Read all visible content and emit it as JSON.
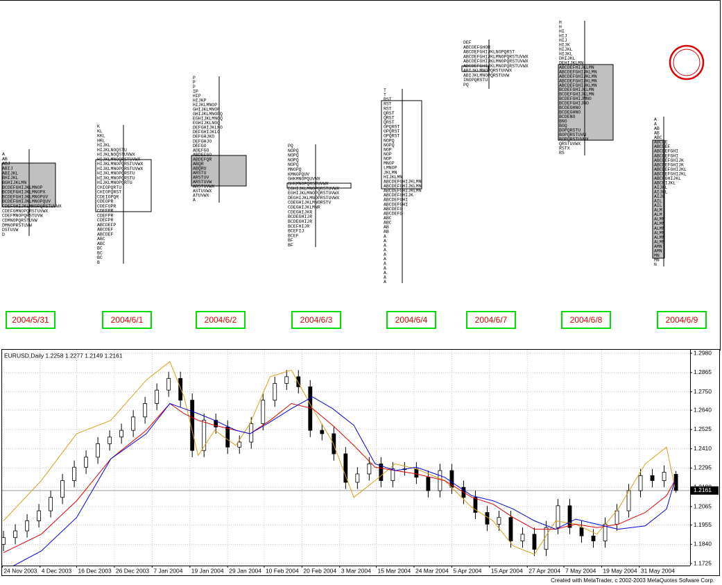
{
  "profiles": [
    {
      "date": "2004/5/31",
      "rows": [
        "A",
        "AB",
        "ABJ",
        "ABIJ",
        "ABIJKL",
        "BHIJKL",
        "BGHIJKLMN",
        "BCDEFGHIJKLMNOP",
        "BCDEFGHIJKLMNOPX",
        "BCDEFGHIJKLMNOPUV",
        "BCDEFGHIJKLMNOPQUV",
        "CDEFGHIJKLMNOPQRSTUVWX",
        "CDEFGMNOPQRSTUVWX",
        "CDEFMNOPQRSTUVW",
        "CDMNOPQRSTUVW",
        "DMNOPRSTUVW",
        "DSTUVW",
        "D"
      ]
    },
    {
      "date": "2004/6/1",
      "rows": [
        "K",
        "KL",
        "KKL",
        "HKL",
        "HIJKL",
        "HIJKLNOQSTU",
        "HIJKLNOQSTUVWX",
        "HIJKLMNOQRSTUVWX",
        "HIJKLMNOPQRSTUVWX",
        "HIJKLMNOPQRSTUVWX",
        "HIJKLMNOPQRSTU",
        "HIJKLMNOPQRSTU",
        "HIJKLMNOPQRTU",
        "CHIOPQRTU",
        "CHIOPQRST",
        "CDEIOPQR",
        "CDEOPR",
        "CDEFOPR",
        "CDEFPR",
        "CDEFPR",
        "CDEFPR",
        "ABCDEFP",
        "ABCDEF",
        "ABCDEF",
        "ABC",
        "ABC",
        "BC",
        "BC",
        "BC",
        "B"
      ]
    },
    {
      "date": "2004/6/2",
      "rows": [
        "P",
        "P",
        "P",
        "IP",
        "HIP",
        "HIJKP",
        "HIJKLMNOP",
        "GHIJKLMNOP",
        "GHIJKLMNOPQ",
        "EGHIJKLMNOQ",
        "EGHIJKLNOQ",
        "DEFGHIJKLNO",
        "DEFGHIJKLO",
        "DEFGHJKO",
        "DEFGHJO",
        "DEFGO",
        "ADEFGO",
        "ABDEFGO",
        "ABDEFQR",
        "ABQR",
        "ABQRU",
        "ARSTU",
        "ARSTUV",
        "ARSTUVW",
        "ARSTUVWX",
        "ASTUVWX",
        "ATUVWX",
        "A"
      ]
    },
    {
      "date": "2004/6/3",
      "rows": [
        "PQ",
        "NOPQ",
        "NOPQ",
        "NOPQ",
        "NOPQ",
        "MNOPQ",
        "KMNOPQUV",
        "GHKMNOPQUVWX",
        "GHKMNOPQRSTUVWX",
        "EGHIJKLMNOPQRSTUVWX",
        "EGHIJKLMNOPQRSTUVWX",
        "DEGHIJKLMNOPRSTUVWX",
        "CDEGHIJKLMNORSTV",
        "CDEGHIJKLMNR",
        "CDEGHIJKR",
        "BCDEGHIJR",
        "BCDEGHIJR",
        "BCEFHIJR",
        "BCEFIJ",
        "BCEF",
        "BF",
        "BF"
      ]
    },
    {
      "date": "2004/6/4",
      "rows": [
        "T",
        "T",
        "RST",
        "RST",
        "RST",
        "QRST",
        "QRST",
        "QRST",
        "OPQRST",
        "OPQRST",
        "OPQRST",
        "NOPQ",
        "NOPQ",
        "NOP",
        "NOP",
        "NOP",
        "MNOP",
        "LMNOP",
        "JKLMN",
        "HIJKLMN",
        "ABCDEFGHIJKLMN",
        "ABCDEFGHIJKLMN",
        "ABCDEFGHIJKLMN",
        "ABCDEFGHIJK",
        "ABCDEFGHI",
        "ABCDEFGHI",
        "ABCDEFG",
        "ABCDEFG",
        "ABC",
        "ABC",
        "AB",
        "AB",
        "A",
        "A",
        "A",
        "A",
        "A",
        "A",
        "A",
        "A",
        "A",
        "A",
        "A"
      ]
    },
    {
      "date": "2004/6/7",
      "rows": [
        "DEF",
        "ABCDEFGHOR",
        "ABCDEFGHIJKLNOPQRST",
        "ABCDEFGHIJKLMNOPQRSTUVWX",
        "ABCDEFGHIJKLMNOPQRSTUVWX",
        "ABCDEFGHIJKLMNOPQRSTUVWX",
        "ABIJKLMNOPQRSTUVWX",
        "ABIJKLMNOPQRSTUVW",
        "INOPQRSTU",
        "PQ"
      ]
    },
    {
      "date": "2004/6/8",
      "rows": [
        "H",
        "H",
        "HI",
        "HIJ",
        "HIJ",
        "HIJK",
        "HIJKL",
        "HIJKL",
        "DHIJKL",
        "DEHIJKLMN",
        "ABCDEFHIJKLMN",
        "ABCDEFGHIJKLMN",
        "ABCDEFGHIJKLMN",
        "ABCDEFGHIJKLMN",
        "ABCDEFGHIJKLMN",
        "BCDEFGHIJKLMN",
        "BCDEFGHIJKLMN",
        "BCDEFGHIJMNO",
        "BCDEFGHIJNO",
        "BCDEGHNO",
        "BCDEGHNO",
        "BCDENO",
        "BNO",
        "BOQ",
        "BOPQRSTU",
        "BOPQRSTUVW",
        "BOPQRSTUVWX",
        "QRSTUVWX",
        "RSTX",
        "RS"
      ]
    },
    {
      "date": "2004/6/9",
      "rows": [
        "A",
        "A",
        "AB",
        "AB",
        "ABC",
        "ABCDE",
        "ABCDEF",
        "ABCDEFGHI",
        "ABCDEFGHI",
        "ABCDEFGHIJK",
        "ABCDEFGHIJK",
        "ABCDEFGHIJKL",
        "ABCDEFGHIJKL",
        "ABCFGHIJKL",
        "ABCFIJKL",
        "AIJKL",
        "AIJKL",
        "AIJL",
        "AIL",
        "AIL",
        "ALM",
        "ALM",
        "ALMN",
        "ALMN",
        "ALMN",
        "ALMN",
        "ALMN",
        "ALMN",
        "AMN",
        "AMN",
        "MN",
        "MN",
        "N"
      ]
    }
  ],
  "chart_data": {
    "type": "candlestick",
    "title": "EURUSD,Daily  1.2258 1.2277 1.2149 1.2161",
    "x": [
      0,
      1,
      2,
      3,
      4,
      5,
      6,
      7,
      8,
      9,
      10,
      11,
      12,
      13,
      14,
      15,
      16,
      17,
      18,
      19,
      20,
      21,
      22,
      23,
      24,
      25,
      26,
      27,
      28,
      29,
      30,
      31,
      32,
      33,
      34,
      35,
      36,
      37,
      38,
      39,
      40,
      41,
      42,
      43,
      44,
      45,
      46,
      47,
      48,
      49,
      50,
      51,
      52,
      53,
      54,
      55,
      56,
      57
    ],
    "open": [
      1.184,
      1.188,
      1.192,
      1.198,
      1.204,
      1.212,
      1.222,
      1.23,
      1.236,
      1.244,
      1.248,
      1.252,
      1.26,
      1.268,
      1.276,
      1.283,
      1.27,
      1.24,
      1.258,
      1.254,
      1.242,
      1.245,
      1.256,
      1.27,
      1.28,
      1.284,
      1.278,
      1.252,
      1.25,
      1.238,
      1.221,
      1.226,
      1.232,
      1.222,
      1.229,
      1.229,
      1.224,
      1.216,
      1.228,
      1.218,
      1.212,
      1.203,
      1.196,
      1.2,
      1.186,
      1.19,
      1.181,
      1.194,
      1.207,
      1.194,
      1.189,
      1.186,
      1.196,
      1.204,
      1.216,
      1.225,
      1.222,
      1.2258
    ],
    "high": [
      1.192,
      1.196,
      1.202,
      1.208,
      1.216,
      1.226,
      1.234,
      1.24,
      1.248,
      1.252,
      1.256,
      1.264,
      1.272,
      1.28,
      1.287,
      1.287,
      1.274,
      1.262,
      1.262,
      1.258,
      1.249,
      1.26,
      1.274,
      1.284,
      1.288,
      1.288,
      1.282,
      1.256,
      1.254,
      1.242,
      1.23,
      1.236,
      1.236,
      1.233,
      1.233,
      1.233,
      1.228,
      1.232,
      1.232,
      1.222,
      1.216,
      1.207,
      1.204,
      1.204,
      1.194,
      1.194,
      1.198,
      1.211,
      1.211,
      1.198,
      1.193,
      1.2,
      1.208,
      1.22,
      1.229,
      1.229,
      1.231,
      1.2277
    ],
    "low": [
      1.18,
      1.184,
      1.188,
      1.194,
      1.2,
      1.208,
      1.218,
      1.226,
      1.232,
      1.24,
      1.244,
      1.248,
      1.256,
      1.264,
      1.272,
      1.266,
      1.236,
      1.236,
      1.25,
      1.238,
      1.238,
      1.241,
      1.252,
      1.266,
      1.276,
      1.274,
      1.248,
      1.246,
      1.234,
      1.217,
      1.217,
      1.222,
      1.218,
      1.218,
      1.225,
      1.22,
      1.212,
      1.212,
      1.214,
      1.208,
      1.199,
      1.192,
      1.192,
      1.182,
      1.182,
      1.177,
      1.177,
      1.19,
      1.19,
      1.185,
      1.182,
      1.182,
      1.192,
      1.2,
      1.212,
      1.218,
      1.218,
      1.2149
    ],
    "close": [
      1.188,
      1.192,
      1.198,
      1.204,
      1.212,
      1.222,
      1.23,
      1.236,
      1.244,
      1.248,
      1.252,
      1.26,
      1.268,
      1.276,
      1.283,
      1.27,
      1.24,
      1.258,
      1.254,
      1.242,
      1.245,
      1.256,
      1.27,
      1.28,
      1.284,
      1.278,
      1.252,
      1.25,
      1.238,
      1.221,
      1.226,
      1.232,
      1.222,
      1.229,
      1.229,
      1.224,
      1.216,
      1.228,
      1.218,
      1.212,
      1.203,
      1.196,
      1.2,
      1.186,
      1.19,
      1.181,
      1.194,
      1.207,
      1.194,
      1.189,
      1.186,
      1.196,
      1.204,
      1.216,
      1.225,
      1.222,
      1.227,
      1.2161
    ],
    "bull_color": "#ffffff",
    "bear_color": "#000000",
    "series": [
      {
        "color": "#d4a017",
        "x": [
          0,
          3.2,
          6.2,
          9.1,
          12.1,
          14.1,
          15.3,
          16.5,
          17.9,
          19.7,
          20.9,
          22.6,
          24.4,
          26.2,
          27.9,
          29.7,
          31.5,
          33.2,
          35,
          37.4,
          39.7,
          41.5,
          43.2,
          45,
          46.8,
          48.5,
          50.3,
          52.1,
          54.4,
          56.2,
          56.9
        ],
        "values": [
          1.198,
          1.222,
          1.25,
          1.258,
          1.282,
          1.293,
          1.272,
          1.237,
          1.252,
          1.243,
          1.256,
          1.284,
          1.288,
          1.265,
          1.245,
          1.212,
          1.222,
          1.232,
          1.229,
          1.222,
          1.206,
          1.198,
          1.183,
          1.178,
          1.198,
          1.196,
          1.19,
          1.205,
          1.232,
          1.242,
          1.218
        ]
      },
      {
        "color": "#e00000",
        "x": [
          0,
          3.2,
          6.2,
          9.1,
          12.1,
          14.1,
          15.3,
          16.5,
          17.9,
          19.7,
          20.9,
          22.6,
          24.4,
          26.2,
          27.9,
          29.7,
          31.5,
          33.2,
          35,
          37.4,
          39.7,
          41.5,
          43.2,
          45,
          46.8,
          48.5,
          50.3,
          52.1,
          54.4,
          56.2,
          56.9
        ],
        "values": [
          1.179,
          1.19,
          1.21,
          1.235,
          1.252,
          1.268,
          1.262,
          1.258,
          1.255,
          1.252,
          1.25,
          1.258,
          1.268,
          1.265,
          1.255,
          1.243,
          1.23,
          1.228,
          1.226,
          1.222,
          1.212,
          1.208,
          1.2,
          1.193,
          1.193,
          1.196,
          1.194,
          1.196,
          1.203,
          1.213,
          1.222
        ]
      },
      {
        "color": "#0000e0",
        "x": [
          0,
          3.2,
          6.2,
          9.1,
          12.1,
          14.1,
          15.3,
          16.5,
          17.9,
          19.7,
          20.9,
          22.6,
          24.4,
          26.2,
          27.9,
          29.7,
          31.5,
          33.2,
          35,
          37.4,
          39.7,
          41.5,
          43.2,
          45,
          46.8,
          48.5,
          50.3,
          52.1,
          54.4,
          56.2,
          56.9
        ],
        "values": [
          1.168,
          1.18,
          1.2,
          1.235,
          1.25,
          1.268,
          1.265,
          1.262,
          1.258,
          1.252,
          1.25,
          1.257,
          1.265,
          1.272,
          1.265,
          1.255,
          1.232,
          1.228,
          1.23,
          1.224,
          1.213,
          1.21,
          1.205,
          1.198,
          1.193,
          1.199,
          1.196,
          1.193,
          1.195,
          1.205,
          1.222
        ]
      }
    ],
    "xlim": [
      -0.12,
      58.2
    ],
    "ylim": [
      1.1713,
      1.3001
    ],
    "xticks": [
      {
        "value": -0.1,
        "label": "24 Nov 2003"
      },
      {
        "value": 3.1,
        "label": "4 Dec 2003"
      },
      {
        "value": 6.2,
        "label": "16 Dec 2003"
      },
      {
        "value": 9.4,
        "label": "26 Dec 2003"
      },
      {
        "value": 12.6,
        "label": "7 Jan 2004"
      },
      {
        "value": 15.8,
        "label": "19 Jan 2004"
      },
      {
        "value": 19,
        "label": "29 Jan 2004"
      },
      {
        "value": 22.1,
        "label": "10 Feb 2004"
      },
      {
        "value": 25.3,
        "label": "20 Feb 2004"
      },
      {
        "value": 28.5,
        "label": "3 Mar 2004"
      },
      {
        "value": 31.6,
        "label": "15 Mar 2004"
      },
      {
        "value": 34.8,
        "label": "24 Mar 2004"
      },
      {
        "value": 38,
        "label": "5 Apr 2004"
      },
      {
        "value": 41.2,
        "label": "15 Apr 2004"
      },
      {
        "value": 44.4,
        "label": "27 Apr 2004"
      },
      {
        "value": 47.5,
        "label": "7 May 2004"
      },
      {
        "value": 50.7,
        "label": "19 May 2004"
      },
      {
        "value": 53.9,
        "label": "31 May 2004"
      }
    ],
    "yticks": [
      {
        "value": 1.298,
        "label": "1.2980"
      },
      1.2865,
      {
        "value": 1.275,
        "label": "1.2750"
      },
      {
        "value": 1.264,
        "label": "1.2640"
      },
      1.2525,
      {
        "value": 1.241,
        "label": "1.2410"
      },
      1.2295,
      {
        "value": 1.218,
        "label": "1.2180"
      },
      1.2065,
      1.1955,
      {
        "value": 1.184,
        "label": "1.1840"
      },
      1.1725
    ],
    "grid": true
  },
  "footer": "Created with MetaTrader, c 2002-2003 MetaQuotes Sofware Corp."
}
